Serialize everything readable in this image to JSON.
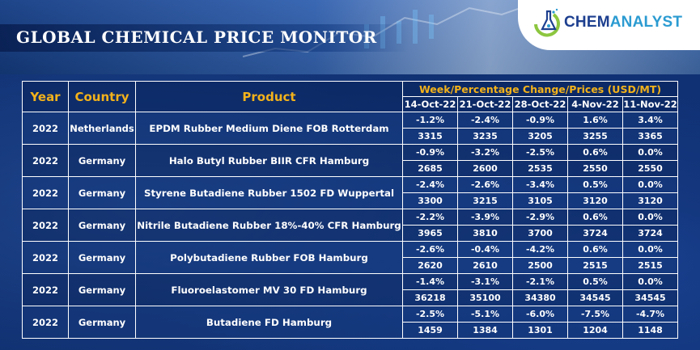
{
  "header": {
    "title": "GLOBAL CHEMICAL PRICE MONITOR",
    "logo": {
      "part_a": "CHEM",
      "part_b": "ANALYST",
      "icon": "flask-chart-icon"
    }
  },
  "table": {
    "headers": {
      "year": "Year",
      "country": "Country",
      "product": "Product",
      "week_group": "Week/Percentage Change/Prices (USD/MT)"
    },
    "dates": [
      "14-Oct-22",
      "21-Oct-22",
      "28-Oct-22",
      "4-Nov-22",
      "11-Nov-22"
    ],
    "rows": [
      {
        "year": "2022",
        "country": "Netherlands",
        "product": "EPDM Rubber Medium Diene FOB Rotterdam",
        "changes": [
          "-1.2%",
          "-2.4%",
          "-0.9%",
          "1.6%",
          "3.4%"
        ],
        "prices": [
          "3315",
          "3235",
          "3205",
          "3255",
          "3365"
        ]
      },
      {
        "year": "2022",
        "country": "Germany",
        "product": "Halo Butyl Rubber BIIR CFR Hamburg",
        "changes": [
          "-0.9%",
          "-3.2%",
          "-2.5%",
          "0.6%",
          "0.0%"
        ],
        "prices": [
          "2685",
          "2600",
          "2535",
          "2550",
          "2550"
        ]
      },
      {
        "year": "2022",
        "country": "Germany",
        "product": "Styrene Butadiene Rubber 1502 FD Wuppertal",
        "changes": [
          "-2.4%",
          "-2.6%",
          "-3.4%",
          "0.5%",
          "0.0%"
        ],
        "prices": [
          "3300",
          "3215",
          "3105",
          "3120",
          "3120"
        ]
      },
      {
        "year": "2022",
        "country": "Germany",
        "product": "Nitrile Butadiene Rubber 18%-40% CFR Hamburg",
        "changes": [
          "-2.2%",
          "-3.9%",
          "-2.9%",
          "0.6%",
          "0.0%"
        ],
        "prices": [
          "3965",
          "3810",
          "3700",
          "3724",
          "3724"
        ]
      },
      {
        "year": "2022",
        "country": "Germany",
        "product": "Polybutadiene Rubber FOB Hamburg",
        "changes": [
          "-2.6%",
          "-0.4%",
          "-4.2%",
          "0.6%",
          "0.0%"
        ],
        "prices": [
          "2620",
          "2610",
          "2500",
          "2515",
          "2515"
        ]
      },
      {
        "year": "2022",
        "country": "Germany",
        "product": "Fluoroelastomer MV 30 FD Hamburg",
        "changes": [
          "-1.4%",
          "-3.1%",
          "-2.1%",
          "0.5%",
          "0.0%"
        ],
        "prices": [
          "36218",
          "35100",
          "34380",
          "34545",
          "34545"
        ]
      },
      {
        "year": "2022",
        "country": "Germany",
        "product": "Butadiene FD Hamburg",
        "changes": [
          "-2.5%",
          "-5.1%",
          "-6.0%",
          "-7.5%",
          "-4.7%"
        ],
        "prices": [
          "1459",
          "1384",
          "1301",
          "1204",
          "1148"
        ]
      }
    ]
  },
  "colors": {
    "accent": "#f3b21b",
    "background": "#0b2a63",
    "logo_dark": "#1d3f8f",
    "logo_light": "#2b9bd1",
    "logo_green": "#8cc63f"
  }
}
